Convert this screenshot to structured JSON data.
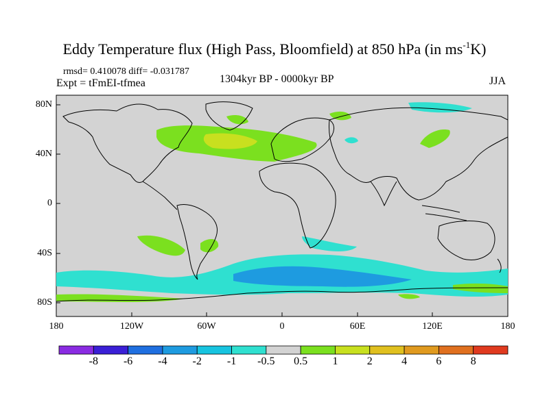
{
  "title": {
    "main": "Eddy Temperature flux (High Pass, Bloomfield) at 850 hPa (in ms",
    "sup": "-1",
    "tail": "K)"
  },
  "stats": "rmsd= 0.410078 diff= -0.031787",
  "experiment": "Expt = tFmEI-tfmea",
  "period": "1304kyr BP - 0000kyr BP",
  "season": "JJA",
  "lat_labels": [
    "80N",
    "40N",
    "0",
    "40S",
    "80S"
  ],
  "lon_labels": [
    "180",
    "120W",
    "60W",
    "0",
    "60E",
    "120E",
    "180"
  ],
  "colorbar": {
    "labels": [
      "-8",
      "-6",
      "-4",
      "-2",
      "-1",
      "-0.5",
      "0.5",
      "1",
      "2",
      "4",
      "6",
      "8"
    ],
    "colors": [
      "#8a2be2",
      "#3a1fd6",
      "#1f6fe0",
      "#1e9be0",
      "#17c4e0",
      "#2fe0d0",
      "#d3d3d3",
      "#7be01f",
      "#c8e01f",
      "#e0c01f",
      "#e09a1f",
      "#e0701f",
      "#e03a1f"
    ]
  },
  "colors": {
    "land_ocean": "#d3d3d3",
    "green": "#7be01f",
    "yellow": "#c8e01f",
    "cyan": "#2fe0d0",
    "light_blue": "#17c4e0",
    "mid_blue": "#1e9be0"
  }
}
